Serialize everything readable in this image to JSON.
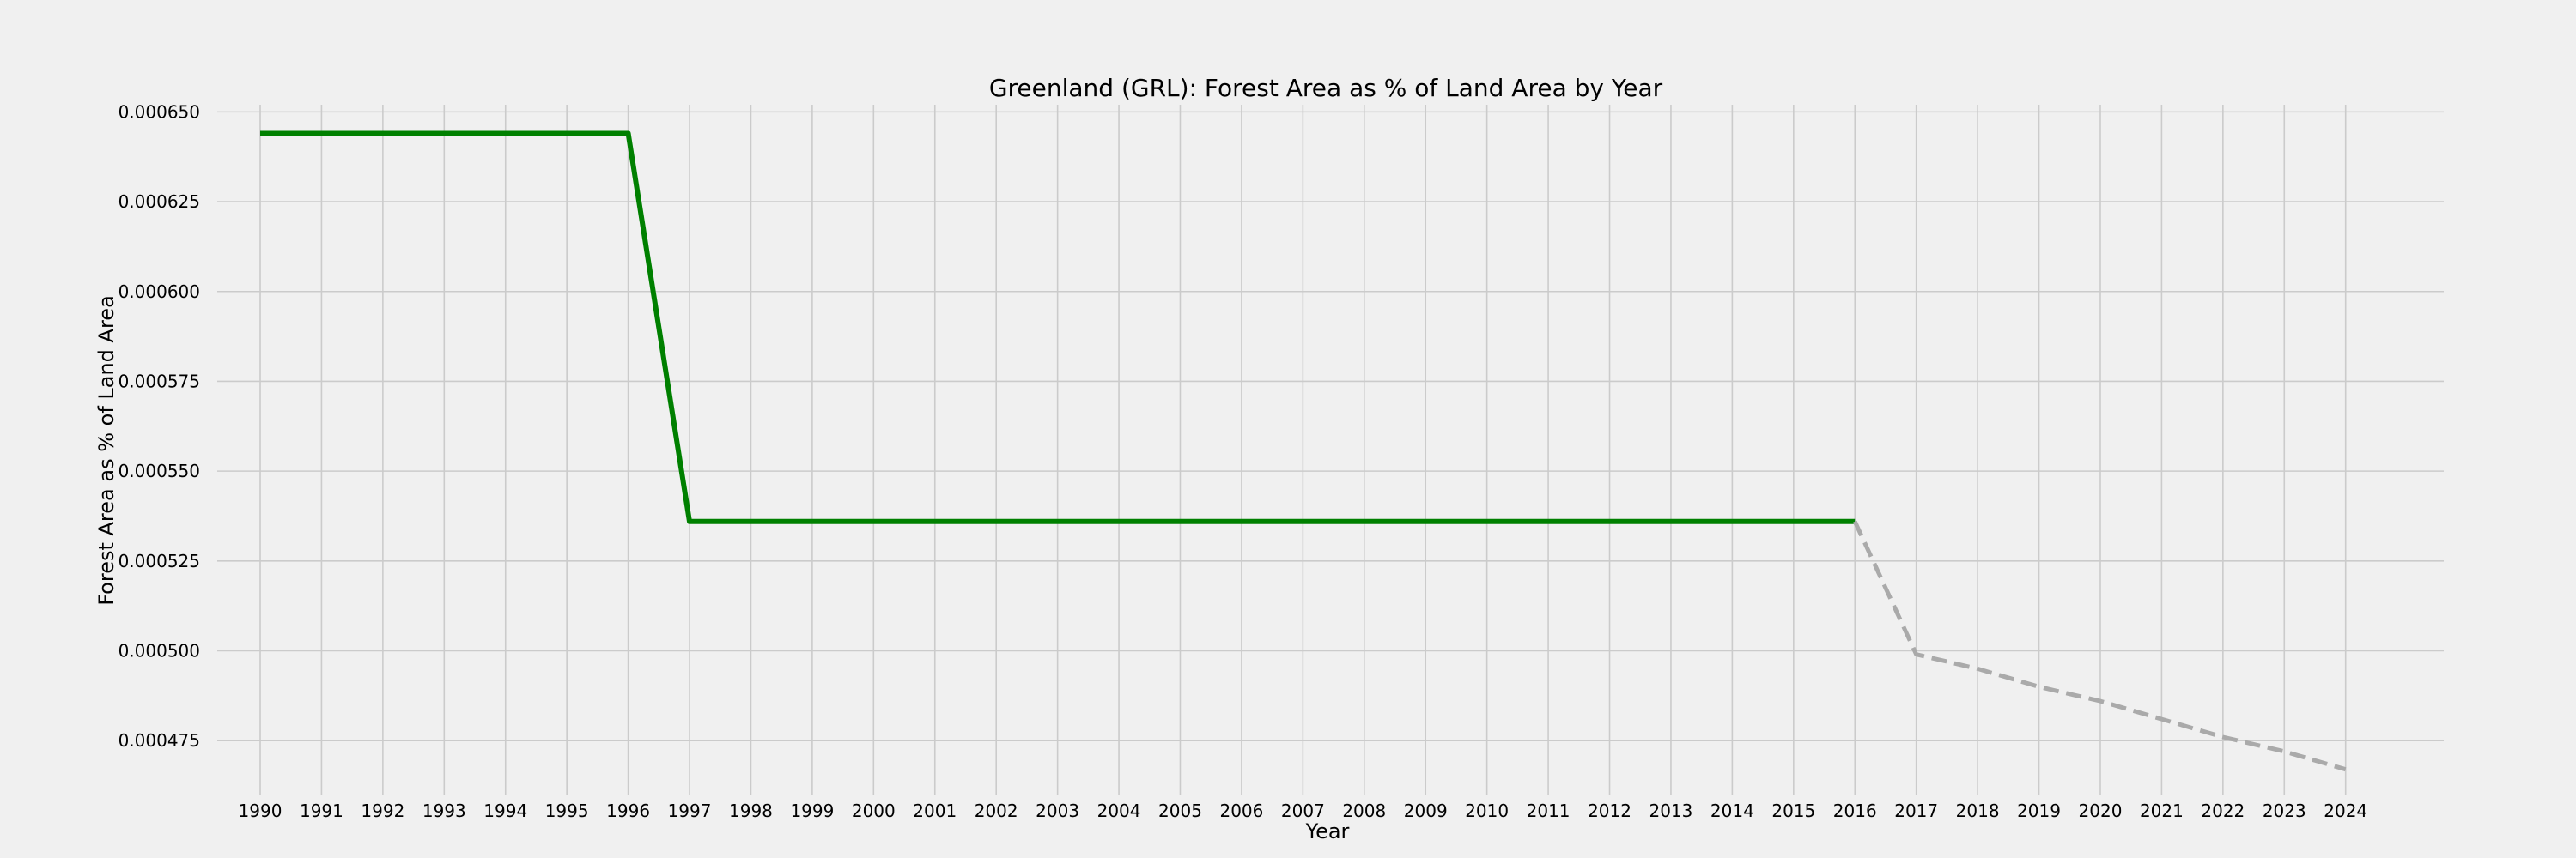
{
  "chart_data": {
    "type": "line",
    "title": "Greenland (GRL): Forest Area as % of Land Area by Year",
    "xlabel": "Year",
    "ylabel": "Forest Area as % of Land Area",
    "x_ticks": [
      "1990",
      "1991",
      "1992",
      "1993",
      "1994",
      "1995",
      "1996",
      "1997",
      "1998",
      "1999",
      "2000",
      "2001",
      "2002",
      "2003",
      "2004",
      "2005",
      "2006",
      "2007",
      "2008",
      "2009",
      "2010",
      "2011",
      "2012",
      "2013",
      "2014",
      "2015",
      "2016",
      "2017",
      "2018",
      "2019",
      "2020",
      "2021",
      "2022",
      "2023",
      "2024"
    ],
    "y_ticks": [
      "0.000475",
      "0.000500",
      "0.000525",
      "0.000550",
      "0.000575",
      "0.000600",
      "0.000625",
      "0.000650"
    ],
    "xlim": [
      1989.3,
      2025.6
    ],
    "ylim": [
      0.00046,
      0.000652
    ],
    "grid": true,
    "series": [
      {
        "style": "solid",
        "color": "#008000",
        "x": [
          1990,
          1991,
          1992,
          1993,
          1994,
          1995,
          1996,
          1997,
          1998,
          1999,
          2000,
          2001,
          2002,
          2003,
          2004,
          2005,
          2006,
          2007,
          2008,
          2009,
          2010,
          2011,
          2012,
          2013,
          2014,
          2015,
          2016
        ],
        "y": [
          0.000644,
          0.000644,
          0.000644,
          0.000644,
          0.000644,
          0.000644,
          0.000644,
          0.000536,
          0.000536,
          0.000536,
          0.000536,
          0.000536,
          0.000536,
          0.000536,
          0.000536,
          0.000536,
          0.000536,
          0.000536,
          0.000536,
          0.000536,
          0.000536,
          0.000536,
          0.000536,
          0.000536,
          0.000536,
          0.000536,
          0.000536
        ]
      },
      {
        "style": "dashed",
        "color": "#aaaaaa",
        "x": [
          2016,
          2017,
          2018,
          2019,
          2020,
          2021,
          2022,
          2023,
          2024
        ],
        "y": [
          0.000536,
          0.000499,
          0.000495,
          0.00049,
          0.000486,
          0.000481,
          0.000476,
          0.000472,
          0.000467
        ]
      }
    ]
  }
}
